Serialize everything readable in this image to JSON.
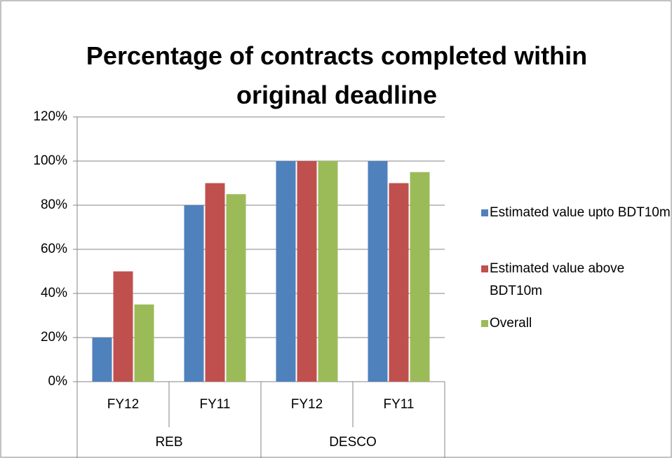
{
  "chart_data": {
    "type": "bar",
    "title": "Percentage of contracts completed within original deadline",
    "categories": [
      "FY12",
      "FY11",
      "FY12",
      "FY11"
    ],
    "groups": [
      "REB",
      "DESCO"
    ],
    "series": [
      {
        "name": "Estimated value upto BDT10m",
        "color": "#4f81bd",
        "values": [
          20,
          80,
          100,
          100
        ]
      },
      {
        "name": "Estimated value above BDT10m",
        "color": "#c0504d",
        "values": [
          50,
          90,
          100,
          90
        ]
      },
      {
        "name": "Overall",
        "color": "#9bbb59",
        "values": [
          35,
          85,
          100,
          95
        ]
      }
    ],
    "ylim": [
      0,
      120
    ],
    "yticks": [
      {
        "value": 0,
        "label": "0%"
      },
      {
        "value": 20,
        "label": "20%"
      },
      {
        "value": 40,
        "label": "40%"
      },
      {
        "value": 60,
        "label": "60%"
      },
      {
        "value": 80,
        "label": "80%"
      },
      {
        "value": 100,
        "label": "100%"
      },
      {
        "value": 120,
        "label": "120%"
      }
    ],
    "grid": true,
    "legend": "right"
  }
}
